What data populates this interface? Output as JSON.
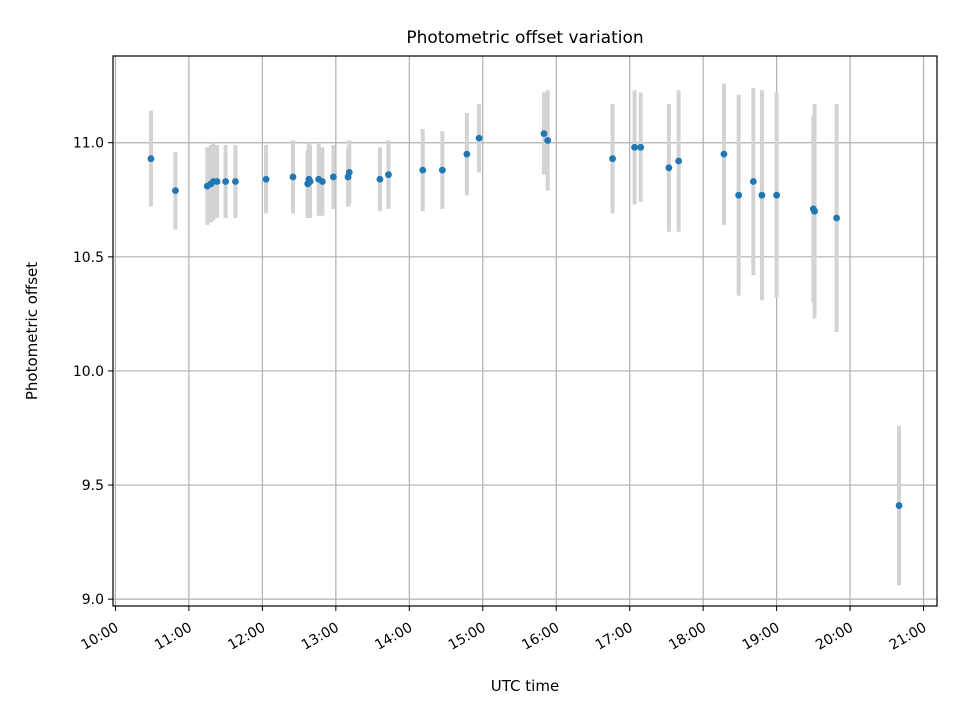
{
  "chart_data": {
    "type": "scatter",
    "title": "Photometric offset variation",
    "xlabel": "UTC time",
    "ylabel": "Photometric offset",
    "x_ticks": [
      "10:00",
      "11:00",
      "12:00",
      "13:00",
      "14:00",
      "15:00",
      "16:00",
      "17:00",
      "18:00",
      "19:00",
      "20:00",
      "21:00"
    ],
    "y_ticks": [
      "9.0",
      "9.5",
      "10.0",
      "10.5",
      "11.0"
    ],
    "xlim": [
      "09:58",
      "21:11"
    ],
    "ylim": [
      8.97,
      11.38
    ],
    "grid": true,
    "colors": {
      "point": "#1f77b4",
      "errorbar": "#d3d3d3",
      "grid": "#b0b0b0"
    },
    "series": [
      {
        "points": [
          {
            "x": "10:29",
            "y": 10.93,
            "err": 0.21
          },
          {
            "x": "10:49",
            "y": 10.79,
            "err": 0.17
          },
          {
            "x": "11:15",
            "y": 10.81,
            "err": 0.17
          },
          {
            "x": "11:18",
            "y": 10.82,
            "err": 0.17
          },
          {
            "x": "11:20",
            "y": 10.83,
            "err": 0.17
          },
          {
            "x": "11:23",
            "y": 10.83,
            "err": 0.16
          },
          {
            "x": "11:30",
            "y": 10.83,
            "err": 0.16
          },
          {
            "x": "11:38",
            "y": 10.83,
            "err": 0.16
          },
          {
            "x": "12:03",
            "y": 10.84,
            "err": 0.15
          },
          {
            "x": "12:25",
            "y": 10.85,
            "err": 0.16
          },
          {
            "x": "12:37",
            "y": 10.82,
            "err": 0.15
          },
          {
            "x": "12:38",
            "y": 10.84,
            "err": 0.16
          },
          {
            "x": "12:39",
            "y": 10.83,
            "err": 0.16
          },
          {
            "x": "12:46",
            "y": 10.84,
            "err": 0.16
          },
          {
            "x": "12:49",
            "y": 10.83,
            "err": 0.15
          },
          {
            "x": "12:58",
            "y": 10.85,
            "err": 0.14
          },
          {
            "x": "13:10",
            "y": 10.85,
            "err": 0.13
          },
          {
            "x": "13:11",
            "y": 10.87,
            "err": 0.14
          },
          {
            "x": "13:36",
            "y": 10.84,
            "err": 0.14
          },
          {
            "x": "13:43",
            "y": 10.86,
            "err": 0.15
          },
          {
            "x": "14:11",
            "y": 10.88,
            "err": 0.18
          },
          {
            "x": "14:27",
            "y": 10.88,
            "err": 0.17
          },
          {
            "x": "14:47",
            "y": 10.95,
            "err": 0.18
          },
          {
            "x": "14:57",
            "y": 11.02,
            "err": 0.15
          },
          {
            "x": "15:50",
            "y": 11.04,
            "err": 0.18
          },
          {
            "x": "15:53",
            "y": 11.01,
            "err": 0.22
          },
          {
            "x": "16:46",
            "y": 10.93,
            "err": 0.24
          },
          {
            "x": "17:04",
            "y": 10.98,
            "err": 0.25
          },
          {
            "x": "17:09",
            "y": 10.98,
            "err": 0.24
          },
          {
            "x": "17:32",
            "y": 10.89,
            "err": 0.28
          },
          {
            "x": "17:40",
            "y": 10.92,
            "err": 0.31
          },
          {
            "x": "18:17",
            "y": 10.95,
            "err": 0.31
          },
          {
            "x": "18:29",
            "y": 10.77,
            "err": 0.44
          },
          {
            "x": "18:41",
            "y": 10.83,
            "err": 0.41
          },
          {
            "x": "18:48",
            "y": 10.77,
            "err": 0.46
          },
          {
            "x": "19:00",
            "y": 10.77,
            "err": 0.45
          },
          {
            "x": "19:30",
            "y": 10.71,
            "err": 0.41
          },
          {
            "x": "19:31",
            "y": 10.7,
            "err": 0.47
          },
          {
            "x": "19:49",
            "y": 10.67,
            "err": 0.5
          },
          {
            "x": "20:40",
            "y": 9.41,
            "err": 0.35
          }
        ]
      }
    ]
  }
}
